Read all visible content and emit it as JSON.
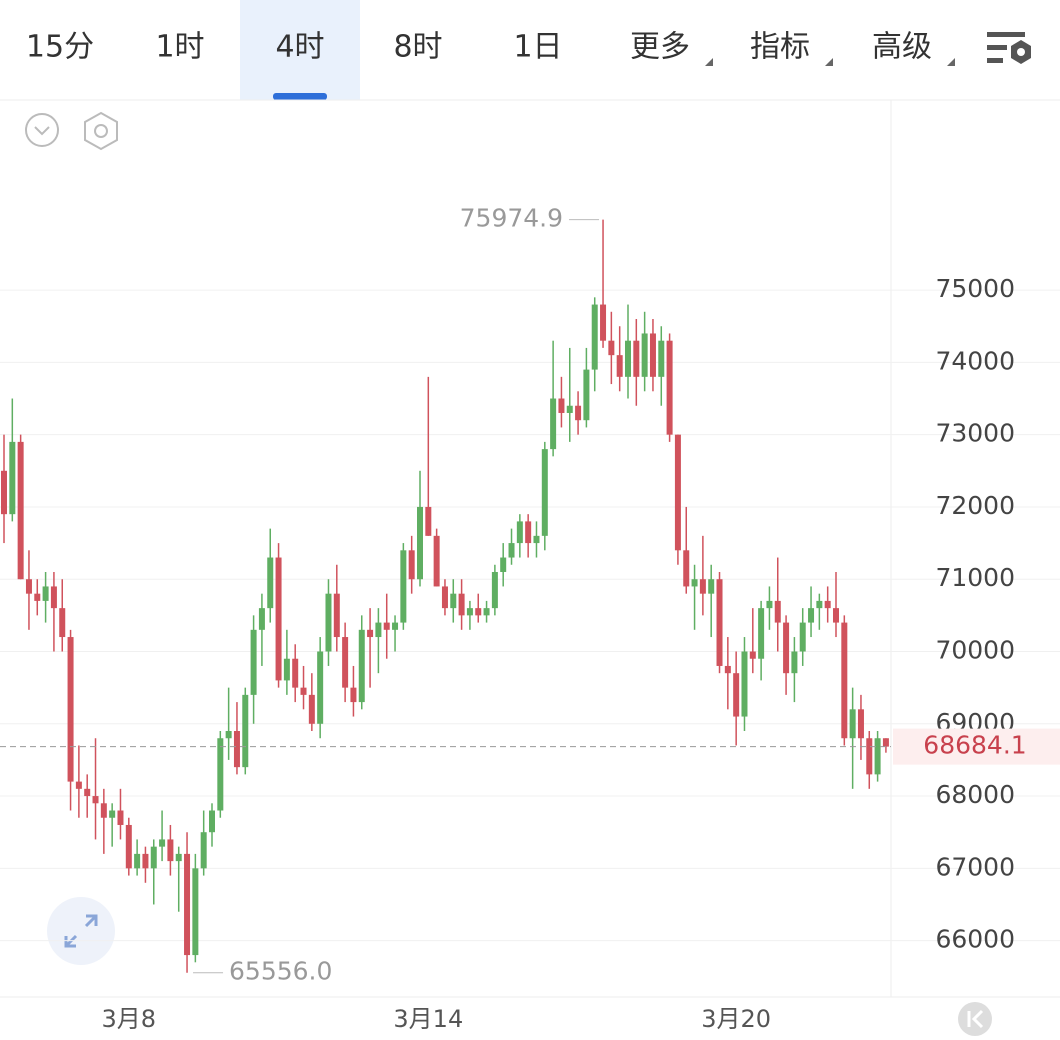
{
  "tabs": [
    "15分",
    "1时",
    "4时",
    "8时",
    "1日",
    "更多",
    "指标",
    "高级"
  ],
  "active_tab": 2,
  "chart_data": {
    "type": "candlestick",
    "categories": [
      null,
      null,
      null,
      null,
      null,
      null,
      null,
      null,
      null,
      null,
      null,
      null,
      null,
      null,
      null,
      "3月8",
      null,
      null,
      null,
      null,
      null,
      null,
      null,
      null,
      null,
      null,
      null,
      null,
      null,
      null,
      null,
      null,
      null,
      null,
      null,
      null,
      null,
      null,
      null,
      null,
      null,
      null,
      null,
      null,
      null,
      null,
      null,
      null,
      null,
      null,
      null,
      "3月14",
      null,
      null,
      null,
      null,
      null,
      null,
      null,
      null,
      null,
      null,
      null,
      null,
      null,
      null,
      null,
      null,
      null,
      null,
      null,
      null,
      null,
      null,
      null,
      null,
      null,
      null,
      null,
      null,
      null,
      null,
      null,
      null,
      null,
      null,
      null,
      null,
      "3月20",
      null,
      null,
      null,
      null,
      null,
      null,
      null,
      null,
      null,
      null,
      null,
      null,
      null,
      null,
      null,
      null,
      null,
      null
    ],
    "open": [
      72500,
      71900,
      72900,
      71000,
      70800,
      70700,
      70900,
      70600,
      70200,
      68200,
      68100,
      68000,
      67900,
      67700,
      67800,
      67600,
      67000,
      67200,
      67000,
      67300,
      67400,
      67100,
      67200,
      65800,
      67000,
      67500,
      67800,
      68800,
      68900,
      68400,
      69400,
      70300,
      70600,
      71300,
      69600,
      69900,
      69500,
      69400,
      69000,
      70000,
      70800,
      70200,
      69500,
      69300,
      70300,
      70200,
      70400,
      70300,
      70400,
      71400,
      71000,
      72000,
      71600,
      70900,
      70600,
      70800,
      70500,
      70600,
      70500,
      70600,
      71100,
      71300,
      71500,
      71800,
      71500,
      71600,
      72800,
      73500,
      73300,
      73400,
      73200,
      73900,
      74800,
      74300,
      74100,
      73800,
      74300,
      73800,
      74400,
      73800,
      74300,
      73000,
      71400,
      70900,
      71000,
      70800,
      71000,
      69800,
      69700,
      69100,
      70000,
      69900,
      70600,
      70700,
      70400,
      69700,
      70000,
      70400,
      70600,
      70700,
      70600,
      70400,
      68800,
      69200,
      68800,
      68300,
      68800
    ],
    "high": [
      73000,
      73500,
      73000,
      71400,
      71000,
      71100,
      71100,
      71000,
      70300,
      68700,
      68300,
      68800,
      68100,
      67900,
      68100,
      67700,
      67400,
      67300,
      67400,
      67800,
      67600,
      67300,
      67500,
      67200,
      67800,
      67900,
      68900,
      69500,
      69300,
      69500,
      70500,
      70800,
      71700,
      71500,
      70300,
      70100,
      69800,
      69700,
      70200,
      71000,
      71200,
      70400,
      69800,
      70500,
      70600,
      70600,
      70800,
      70500,
      71500,
      71600,
      72500,
      73800,
      71700,
      71000,
      71000,
      71000,
      70700,
      70800,
      70700,
      71200,
      71500,
      71700,
      71900,
      71900,
      71800,
      72900,
      74300,
      73800,
      74200,
      73600,
      74200,
      74900,
      75974.9,
      74700,
      74500,
      74800,
      74600,
      74700,
      74600,
      74500,
      74400,
      73000,
      72000,
      71200,
      71600,
      71200,
      71100,
      70200,
      70000,
      70200,
      70600,
      70700,
      70900,
      71300,
      70500,
      70200,
      70600,
      70900,
      70800,
      70900,
      71100,
      70500,
      69500,
      69400,
      68900,
      68900,
      68800
    ],
    "low": [
      71500,
      71800,
      71000,
      70300,
      70500,
      70400,
      70000,
      70000,
      67800,
      67700,
      67700,
      67400,
      67200,
      67300,
      67400,
      66900,
      66900,
      66800,
      66500,
      67100,
      66900,
      66400,
      65556,
      65700,
      66900,
      67300,
      67700,
      68500,
      68300,
      68300,
      69000,
      69800,
      70400,
      69500,
      69400,
      69300,
      69200,
      68900,
      68800,
      69800,
      70000,
      69300,
      69100,
      69200,
      69500,
      69700,
      69900,
      70000,
      70300,
      70800,
      70900,
      71600,
      70900,
      70500,
      70400,
      70300,
      70300,
      70400,
      70400,
      70500,
      70900,
      71200,
      71300,
      71300,
      71300,
      71400,
      72700,
      73100,
      72900,
      73000,
      73100,
      73600,
      74200,
      73700,
      73600,
      73500,
      73400,
      73600,
      73600,
      73400,
      72900,
      71200,
      70800,
      70300,
      70500,
      70200,
      69700,
      69200,
      68700,
      68900,
      69700,
      69600,
      70300,
      70000,
      69400,
      69300,
      69800,
      70200,
      70300,
      70400,
      70200,
      68700,
      68100,
      68500,
      68100,
      68200,
      68600
    ],
    "close": [
      71900,
      72900,
      71000,
      70800,
      70700,
      70900,
      70600,
      70200,
      68200,
      68100,
      68000,
      67900,
      67700,
      67800,
      67600,
      67000,
      67200,
      67000,
      67300,
      67400,
      67100,
      67200,
      65800,
      67000,
      67500,
      67800,
      68800,
      68900,
      68400,
      69400,
      70300,
      70600,
      71300,
      69600,
      69900,
      69500,
      69400,
      69000,
      70000,
      70800,
      70200,
      69500,
      69300,
      70300,
      70200,
      70400,
      70300,
      70400,
      71400,
      71000,
      72000,
      71600,
      70900,
      70600,
      70800,
      70500,
      70600,
      70500,
      70600,
      71100,
      71300,
      71500,
      71800,
      71500,
      71600,
      72800,
      73500,
      73300,
      73400,
      73200,
      73900,
      74800,
      74300,
      74100,
      73800,
      74300,
      73800,
      74400,
      73800,
      74300,
      73000,
      71400,
      70900,
      71000,
      70800,
      71000,
      69800,
      69700,
      69100,
      70000,
      69900,
      70600,
      70700,
      70400,
      69700,
      70000,
      70400,
      70600,
      70700,
      70600,
      70400,
      68800,
      69200,
      68800,
      68300,
      68800,
      68684.1
    ],
    "up_color": "#5fae62",
    "down_color": "#d0525c",
    "ylim": [
      65220,
      77630
    ],
    "yticks": [
      66000,
      67000,
      68000,
      69000,
      70000,
      71000,
      72000,
      73000,
      74000,
      75000
    ],
    "grid": true,
    "annotations": [
      {
        "value": 75974.9,
        "label": "75974.9"
      },
      {
        "value": 65556,
        "label": "65556.0"
      }
    ]
  }
}
